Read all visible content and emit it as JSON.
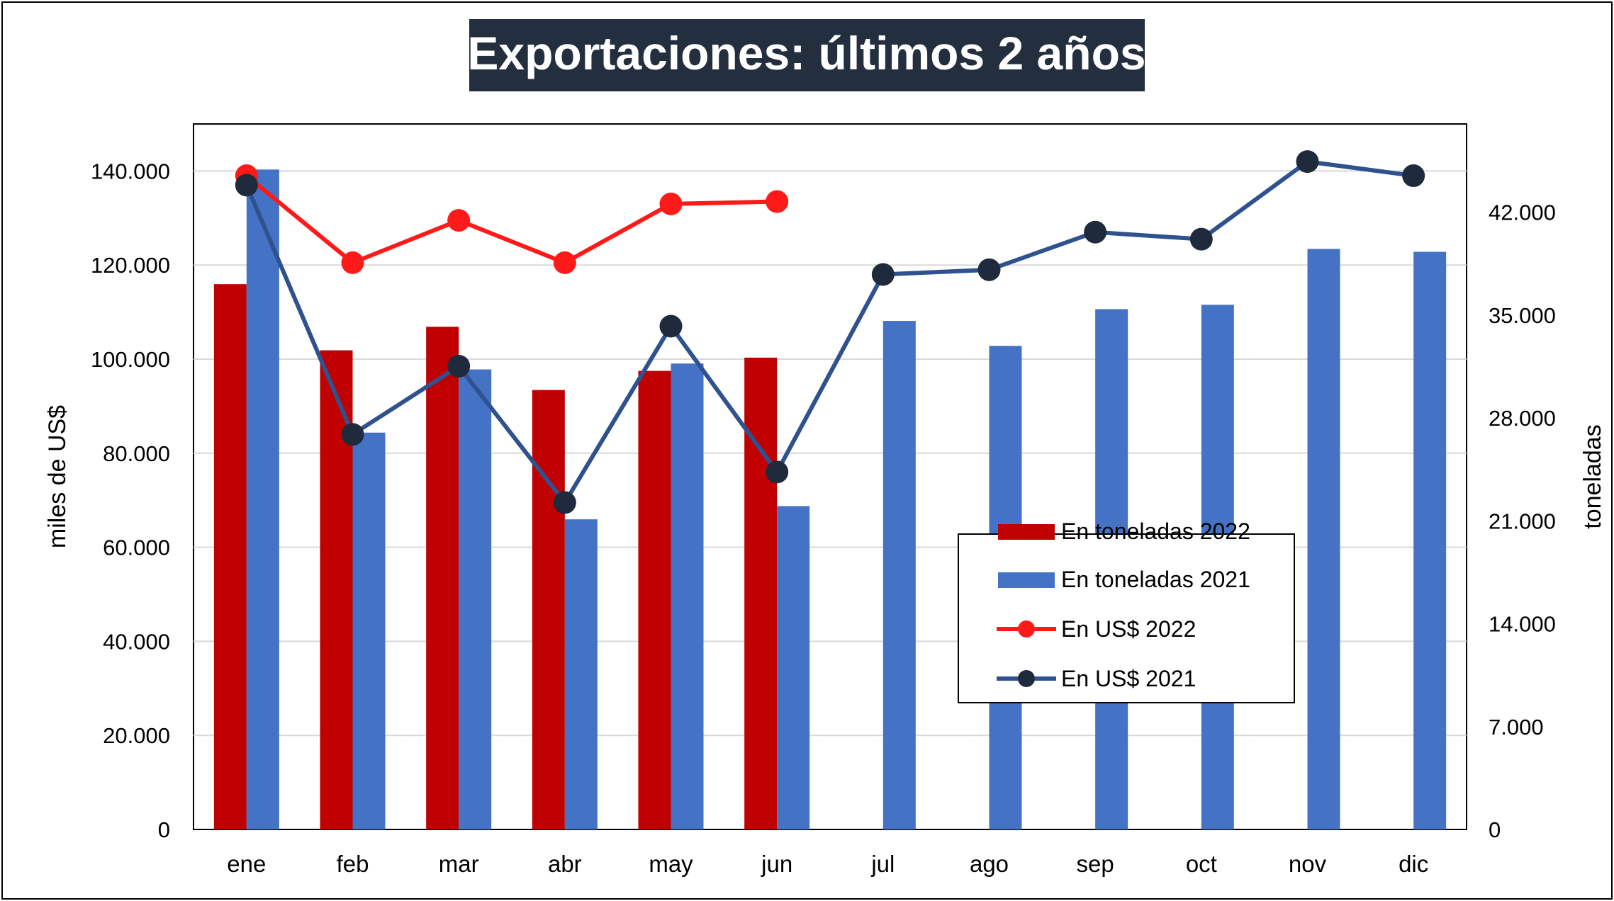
{
  "chart_data": {
    "type": "bar",
    "title": "Exportaciones: últimos 2 años",
    "ylabel": "miles de US$",
    "y2label": "toneladas",
    "categories": [
      "ene",
      "feb",
      "mar",
      "abr",
      "may",
      "jun",
      "jul",
      "ago",
      "sep",
      "oct",
      "nov",
      "dic"
    ],
    "ylim": [
      0,
      150000
    ],
    "y_ticks": [
      0,
      20000,
      40000,
      60000,
      80000,
      100000,
      120000,
      140000
    ],
    "y_tick_labels": [
      "0",
      "20.000",
      "40.000",
      "60.000",
      "80.000",
      "100.000",
      "120.000",
      "140.000"
    ],
    "y2lim": [
      0,
      48000
    ],
    "y2_ticks": [
      0,
      7000,
      14000,
      21000,
      28000,
      35000,
      42000
    ],
    "y2_tick_labels": [
      "0",
      "7.000",
      "14.000",
      "21.000",
      "28.000",
      "35.000",
      "42.000"
    ],
    "grid": true,
    "legend_position": "bottom-right inside",
    "series": [
      {
        "name": "En toneladas 2022",
        "kind": "bar",
        "axis": "right",
        "color": "#C00000",
        "values": [
          37100,
          32600,
          34200,
          29900,
          31200,
          32100,
          null,
          null,
          null,
          null,
          null,
          null
        ]
      },
      {
        "name": "En toneladas 2021",
        "kind": "bar",
        "axis": "right",
        "color": "#4472C4",
        "values": [
          44900,
          27000,
          31300,
          21100,
          31700,
          22000,
          34600,
          32900,
          35400,
          35700,
          39500,
          39300
        ]
      },
      {
        "name": "En US$ 2022",
        "kind": "line",
        "axis": "left",
        "color": "#FF1A1A",
        "values": [
          139000,
          120500,
          129500,
          120500,
          133000,
          133500,
          null,
          null,
          null,
          null,
          null,
          null
        ]
      },
      {
        "name": "En US$ 2021",
        "kind": "line",
        "axis": "left",
        "color": "#2F528F",
        "marker_color": "#1F2A3C",
        "values": [
          137000,
          84000,
          98500,
          69500,
          107000,
          76000,
          118000,
          119000,
          127000,
          125500,
          142000,
          139000
        ]
      }
    ]
  }
}
